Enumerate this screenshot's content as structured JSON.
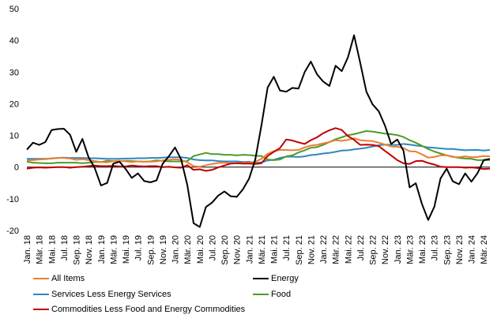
{
  "chart_data": {
    "type": "line",
    "title": "",
    "xlabel": "",
    "ylabel": "",
    "ylim": [
      -20,
      50
    ],
    "yticks": [
      -20,
      -10,
      0,
      10,
      20,
      30,
      40,
      50
    ],
    "grid": false,
    "legend_position": "bottom",
    "x_tick_labels": [
      "Jan. 18",
      "Mär. 18",
      "Mai. 18",
      "Jul. 18",
      "Sep. 18",
      "Nov. 18",
      "Jan. 19",
      "Mär. 19",
      "Mai. 19",
      "Jul. 19",
      "Sep. 19",
      "Nov. 19",
      "Jan. 20",
      "Mär. 20",
      "Mai. 20",
      "Jul. 20",
      "Sep. 20",
      "Nov. 20",
      "Jan. 21",
      "Mär. 21",
      "Mai. 21",
      "Jul. 21",
      "Sep. 21",
      "Nov. 21",
      "Jan. 22",
      "Mär. 22",
      "Mai. 22",
      "Jul. 22",
      "Sep. 22",
      "Nov. 22",
      "Jan. 23",
      "Mär. 23",
      "Mai. 23",
      "Jul. 23",
      "Sep. 23",
      "Nov. 23",
      "Jan. 24",
      "Mär. 24"
    ],
    "x": [
      "Jan. 18",
      "Feb. 18",
      "Mär. 18",
      "Apr. 18",
      "Mai. 18",
      "Jun. 18",
      "Jul. 18",
      "Aug. 18",
      "Sep. 18",
      "Okt. 18",
      "Nov. 18",
      "Dez. 18",
      "Jan. 19",
      "Feb. 19",
      "Mär. 19",
      "Apr. 19",
      "Mai. 19",
      "Jun. 19",
      "Jul. 19",
      "Aug. 19",
      "Sep. 19",
      "Okt. 19",
      "Nov. 19",
      "Dez. 19",
      "Jan. 20",
      "Feb. 20",
      "Mär. 20",
      "Apr. 20",
      "Mai. 20",
      "Jun. 20",
      "Jul. 20",
      "Aug. 20",
      "Sep. 20",
      "Okt. 20",
      "Nov. 20",
      "Dez. 20",
      "Jan. 21",
      "Feb. 21",
      "Mär. 21",
      "Apr. 21",
      "Mai. 21",
      "Jun. 21",
      "Jul. 21",
      "Aug. 21",
      "Sep. 21",
      "Okt. 21",
      "Nov. 21",
      "Dez. 21",
      "Jan. 22",
      "Feb. 22",
      "Mär. 22",
      "Apr. 22",
      "Mai. 22",
      "Jun. 22",
      "Jul. 22",
      "Aug. 22",
      "Sep. 22",
      "Okt. 22",
      "Nov. 22",
      "Dez. 22",
      "Jan. 23",
      "Feb. 23",
      "Mär. 23",
      "Apr. 23",
      "Mai. 23",
      "Jun. 23",
      "Jul. 23",
      "Aug. 23",
      "Sep. 23",
      "Okt. 23",
      "Nov. 23",
      "Dez. 23",
      "Jan. 24",
      "Feb. 24",
      "Mär. 24",
      "Apr. 24"
    ],
    "series": [
      {
        "name": "All Items",
        "color": "#ED7D31",
        "values": [
          2.1,
          2.2,
          2.4,
          2.5,
          2.8,
          2.9,
          2.9,
          2.7,
          2.3,
          2.5,
          2.2,
          1.9,
          1.6,
          1.5,
          1.9,
          2.0,
          1.8,
          1.6,
          1.8,
          1.7,
          1.7,
          1.8,
          2.1,
          2.3,
          2.5,
          2.3,
          1.5,
          0.3,
          0.1,
          0.6,
          1.0,
          1.3,
          1.4,
          1.2,
          1.2,
          1.4,
          1.4,
          1.7,
          2.6,
          4.2,
          5.0,
          5.4,
          5.4,
          5.3,
          5.4,
          6.2,
          6.8,
          7.0,
          7.5,
          7.9,
          8.5,
          8.3,
          8.6,
          9.1,
          8.5,
          8.3,
          8.2,
          7.7,
          7.1,
          6.5,
          6.4,
          6.0,
          5.0,
          4.9,
          4.0,
          3.0,
          3.2,
          3.7,
          3.7,
          3.2,
          3.1,
          3.4,
          3.1,
          3.2,
          3.5,
          3.4
        ]
      },
      {
        "name": "Energy",
        "color": "#000000",
        "values": [
          5.5,
          7.7,
          7.0,
          7.9,
          11.7,
          12.0,
          12.1,
          10.2,
          4.8,
          8.9,
          3.1,
          -0.3,
          -5.8,
          -5.0,
          1.1,
          1.7,
          -0.6,
          -3.4,
          -2.0,
          -4.4,
          -4.8,
          -4.2,
          1.1,
          3.4,
          6.2,
          2.4,
          -5.7,
          -17.7,
          -18.9,
          -12.6,
          -11.2,
          -9.0,
          -7.7,
          -9.2,
          -9.4,
          -7.0,
          -3.6,
          2.4,
          13.2,
          25.1,
          28.5,
          24.2,
          23.8,
          25.0,
          24.8,
          30.0,
          33.3,
          29.3,
          27.0,
          25.6,
          32.0,
          30.3,
          34.6,
          41.6,
          32.9,
          23.8,
          19.8,
          17.6,
          13.1,
          7.3,
          8.7,
          5.2,
          -6.4,
          -5.1,
          -11.7,
          -16.7,
          -12.5,
          -3.6,
          -0.5,
          -4.5,
          -5.4,
          -2.0,
          -4.6,
          -1.9,
          2.2,
          2.6
        ]
      },
      {
        "name": "Services Less Energy Services",
        "color": "#2E86C1",
        "values": [
          2.6,
          2.6,
          2.6,
          2.6,
          2.7,
          2.9,
          3.0,
          2.9,
          2.9,
          2.9,
          2.8,
          2.8,
          2.7,
          2.6,
          2.6,
          2.6,
          2.7,
          2.7,
          2.8,
          2.8,
          2.9,
          2.9,
          3.0,
          3.1,
          3.1,
          3.1,
          2.9,
          2.4,
          2.2,
          2.1,
          2.1,
          1.9,
          1.8,
          1.8,
          1.8,
          1.6,
          1.7,
          1.3,
          1.5,
          2.1,
          2.3,
          2.9,
          3.3,
          3.3,
          3.2,
          3.4,
          3.8,
          4.0,
          4.3,
          4.5,
          4.8,
          5.2,
          5.3,
          5.6,
          5.8,
          6.1,
          6.5,
          6.9,
          7.1,
          7.0,
          7.0,
          7.3,
          7.1,
          6.8,
          6.6,
          6.2,
          6.1,
          5.9,
          5.7,
          5.7,
          5.5,
          5.3,
          5.4,
          5.4,
          5.2,
          5.4
        ]
      },
      {
        "name": "Food",
        "color": "#4E9A2A",
        "values": [
          1.7,
          1.4,
          1.3,
          1.2,
          1.2,
          1.4,
          1.4,
          1.4,
          1.4,
          1.2,
          1.4,
          1.6,
          1.6,
          2.0,
          1.9,
          1.8,
          2.0,
          1.9,
          1.8,
          1.7,
          1.8,
          2.1,
          2.0,
          1.8,
          1.8,
          1.8,
          1.9,
          3.5,
          4.0,
          4.5,
          4.1,
          4.1,
          3.9,
          3.9,
          3.7,
          3.9,
          3.8,
          3.6,
          3.5,
          2.4,
          2.2,
          2.4,
          3.4,
          3.7,
          4.6,
          5.3,
          6.1,
          6.3,
          7.0,
          7.9,
          8.8,
          9.4,
          10.1,
          10.4,
          10.9,
          11.4,
          11.2,
          10.9,
          10.6,
          10.4,
          10.1,
          9.5,
          8.5,
          7.7,
          6.7,
          5.7,
          4.9,
          4.3,
          3.7,
          3.3,
          2.9,
          2.7,
          2.6,
          2.2,
          2.2,
          2.2
        ]
      },
      {
        "name": "Commodities Less Food and Energy Commodities",
        "color": "#C00000",
        "values": [
          -0.5,
          -0.2,
          -0.1,
          -0.2,
          -0.1,
          0.0,
          0.0,
          -0.2,
          0.0,
          0.1,
          0.3,
          0.5,
          0.3,
          0.3,
          0.4,
          0.2,
          0.2,
          0.5,
          0.3,
          0.2,
          0.3,
          0.3,
          0.0,
          0.1,
          -0.1,
          -0.2,
          0.6,
          -0.9,
          -0.7,
          -1.2,
          -0.9,
          -0.1,
          0.5,
          1.1,
          1.2,
          1.1,
          1.1,
          1.0,
          1.2,
          3.5,
          4.8,
          6.0,
          8.7,
          8.4,
          7.8,
          7.3,
          8.5,
          9.4,
          10.7,
          11.6,
          12.3,
          11.7,
          9.8,
          8.6,
          7.0,
          7.1,
          7.0,
          6.6,
          5.1,
          3.7,
          2.2,
          1.2,
          1.0,
          1.9,
          2.0,
          1.3,
          0.8,
          0.1,
          0.0,
          0.0,
          0.0,
          -0.2,
          -0.1,
          -0.3,
          -0.6,
          -0.5
        ]
      }
    ]
  }
}
